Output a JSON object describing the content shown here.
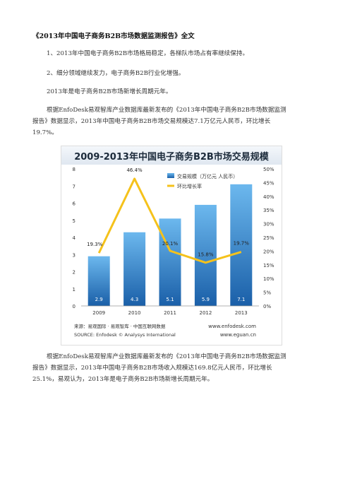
{
  "document": {
    "title": "《2013年中国电子商务B2B市场数据监测报告》全文",
    "point1": "1、2013年中国电子商务B2B市场格局稳定，各梯队市场占有率继续保持。",
    "point2": "2、细分领域继续发力，电子商务B2B行业化增强。",
    "point3": "2013年是电子商务B2B市场新增长周期元年。",
    "para1": "根据EnfoDesk易观智库产业数据库最新发布的《2013年中国电子商务B2B市场数据监测报告》数据显示，2013年中国电子商务B2B市场交易规模达7.1万亿元人民币，环比增长19.7%。",
    "para2": "根据EnfoDesk易观智库产业数据库最新发布的《2013年中国电子商务B2B市场数据监测报告》数据显示，2013年中国电子商务B2B市场收入规模达169.8亿元人民币，环比增长25.1%，易观认为，2013年是电子商务B2B市场新增长周期元年。"
  },
  "chart_data": {
    "type": "bar+line",
    "title": "2009-2013年中国电子商务B2B市场交易规模",
    "categories": [
      "2009",
      "2010",
      "2011",
      "2012",
      "2013"
    ],
    "series": [
      {
        "name": "交易规模（万亿元 人民币）",
        "type": "bar",
        "values": [
          2.9,
          4.3,
          5.1,
          5.9,
          7.1
        ],
        "labels": [
          "2.9",
          "4.3",
          "5.1",
          "5.9",
          "7.1"
        ]
      },
      {
        "name": "环比增长率",
        "type": "line",
        "values": [
          19.3,
          46.4,
          20.1,
          15.8,
          19.7
        ],
        "labels": [
          "19.3%",
          "46.4%",
          "20.1%",
          "15.8%",
          "19.7%"
        ]
      }
    ],
    "y_left": {
      "min": 0,
      "max": 8,
      "ticks": [
        "0",
        "1",
        "2",
        "3",
        "4",
        "5",
        "6",
        "7",
        "8"
      ]
    },
    "y_right": {
      "min": 0,
      "max": 50,
      "ticks": [
        "0%",
        "5%",
        "10%",
        "15%",
        "20%",
        "25%",
        "30%",
        "35%",
        "40%",
        "45%",
        "50%"
      ]
    },
    "legend_position": "top-right",
    "source_cn": "来源：易观国际 · 易观智库 · 中国互联网数据",
    "source_en": "SOURCE: Enfodesk © Analysys International",
    "url1": "www.enfodesk.com",
    "url2": "www.eguan.cn",
    "colors": {
      "bar_top": "#5aa9e6",
      "bar_bottom": "#1a5fa8",
      "line": "#f5c21b",
      "title_bg": "#e8eef5"
    }
  }
}
